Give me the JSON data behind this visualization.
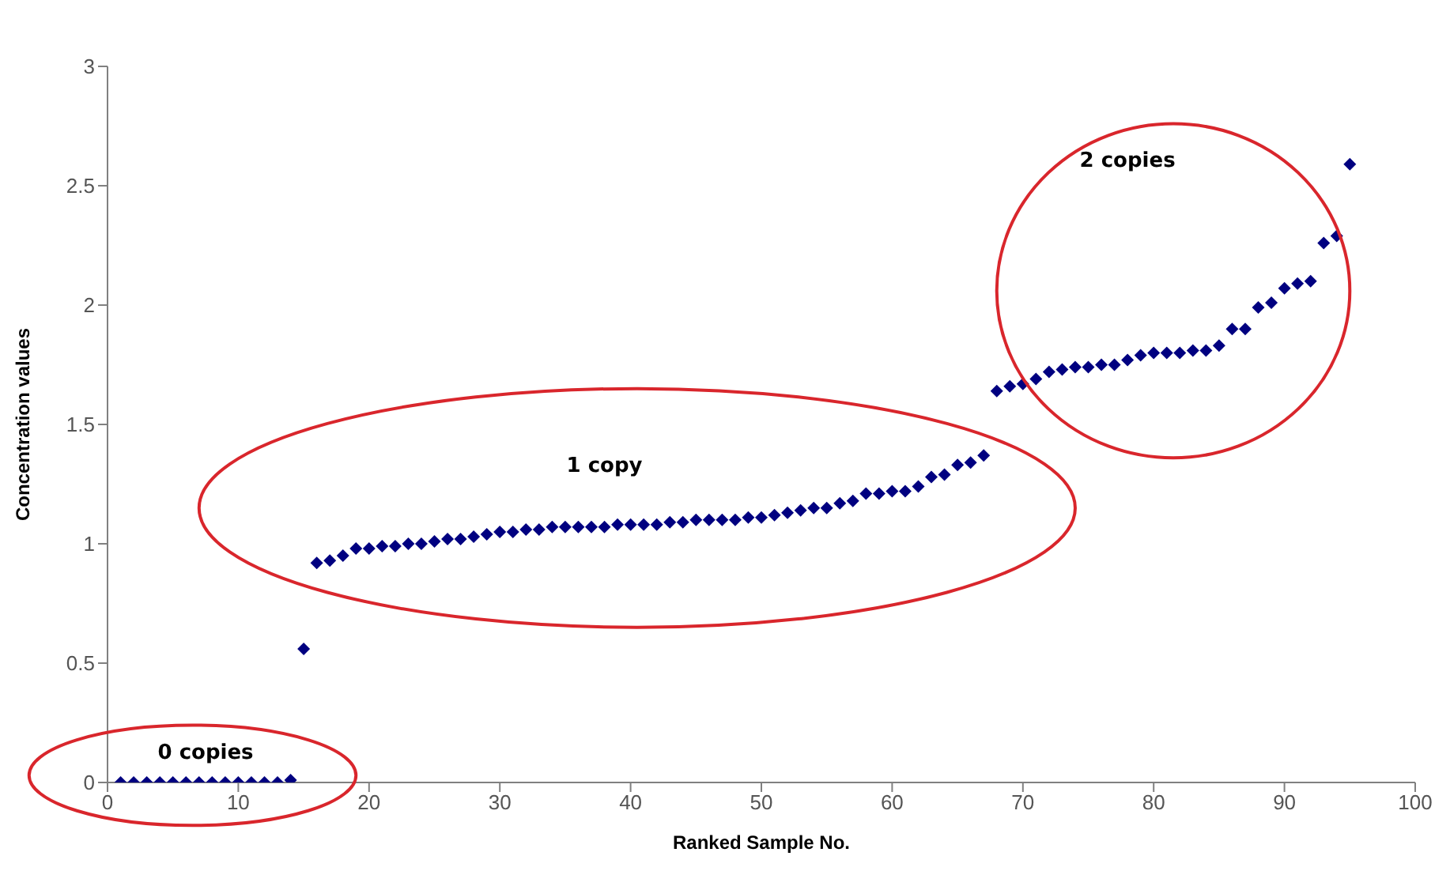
{
  "chart_data": {
    "type": "scatter",
    "xlabel": "Ranked Sample No.",
    "ylabel": "Concentration values",
    "x": [
      1,
      2,
      3,
      4,
      5,
      6,
      7,
      8,
      9,
      10,
      11,
      12,
      13,
      14,
      15,
      16,
      17,
      18,
      19,
      20,
      21,
      22,
      23,
      24,
      25,
      26,
      27,
      28,
      29,
      30,
      31,
      32,
      33,
      34,
      35,
      36,
      37,
      38,
      39,
      40,
      41,
      42,
      43,
      44,
      45,
      46,
      47,
      48,
      49,
      50,
      51,
      52,
      53,
      54,
      55,
      56,
      57,
      58,
      59,
      60,
      61,
      62,
      63,
      64,
      65,
      66,
      67,
      68,
      69,
      70,
      71,
      72,
      73,
      74,
      75,
      76,
      77,
      78,
      79,
      80,
      81,
      82,
      83,
      84,
      85,
      86,
      87,
      88,
      89,
      90,
      91,
      92,
      93,
      94,
      95
    ],
    "series": [
      {
        "color": "#000080",
        "values": [
          0,
          0,
          0,
          0,
          0,
          0,
          0,
          0,
          0,
          0,
          0,
          0,
          0,
          0.01,
          0.56,
          0.92,
          0.93,
          0.95,
          0.98,
          0.98,
          0.99,
          0.99,
          1.0,
          1.0,
          1.01,
          1.02,
          1.02,
          1.03,
          1.04,
          1.05,
          1.05,
          1.06,
          1.06,
          1.07,
          1.07,
          1.07,
          1.07,
          1.07,
          1.08,
          1.08,
          1.08,
          1.08,
          1.09,
          1.09,
          1.1,
          1.1,
          1.1,
          1.1,
          1.11,
          1.11,
          1.12,
          1.13,
          1.14,
          1.15,
          1.15,
          1.17,
          1.18,
          1.21,
          1.21,
          1.22,
          1.22,
          1.24,
          1.28,
          1.29,
          1.33,
          1.34,
          1.37,
          1.64,
          1.66,
          1.67,
          1.69,
          1.72,
          1.73,
          1.74,
          1.74,
          1.75,
          1.75,
          1.77,
          1.79,
          1.8,
          1.8,
          1.8,
          1.81,
          1.81,
          1.83,
          1.9,
          1.9,
          1.99,
          2.01,
          2.07,
          2.09,
          2.1,
          2.26,
          2.29,
          2.59
        ]
      }
    ],
    "xlim": [
      0,
      100
    ],
    "xticks": [
      0,
      10,
      20,
      30,
      40,
      50,
      60,
      70,
      80,
      90,
      100
    ],
    "ylim": [
      0,
      3
    ],
    "yticks": [
      0,
      0.5,
      1,
      1.5,
      2,
      2.5,
      3
    ],
    "marker": "diamond",
    "grid": false,
    "legend": false,
    "annotations": [
      "0 copies",
      "1 copy",
      "2 copies"
    ]
  }
}
